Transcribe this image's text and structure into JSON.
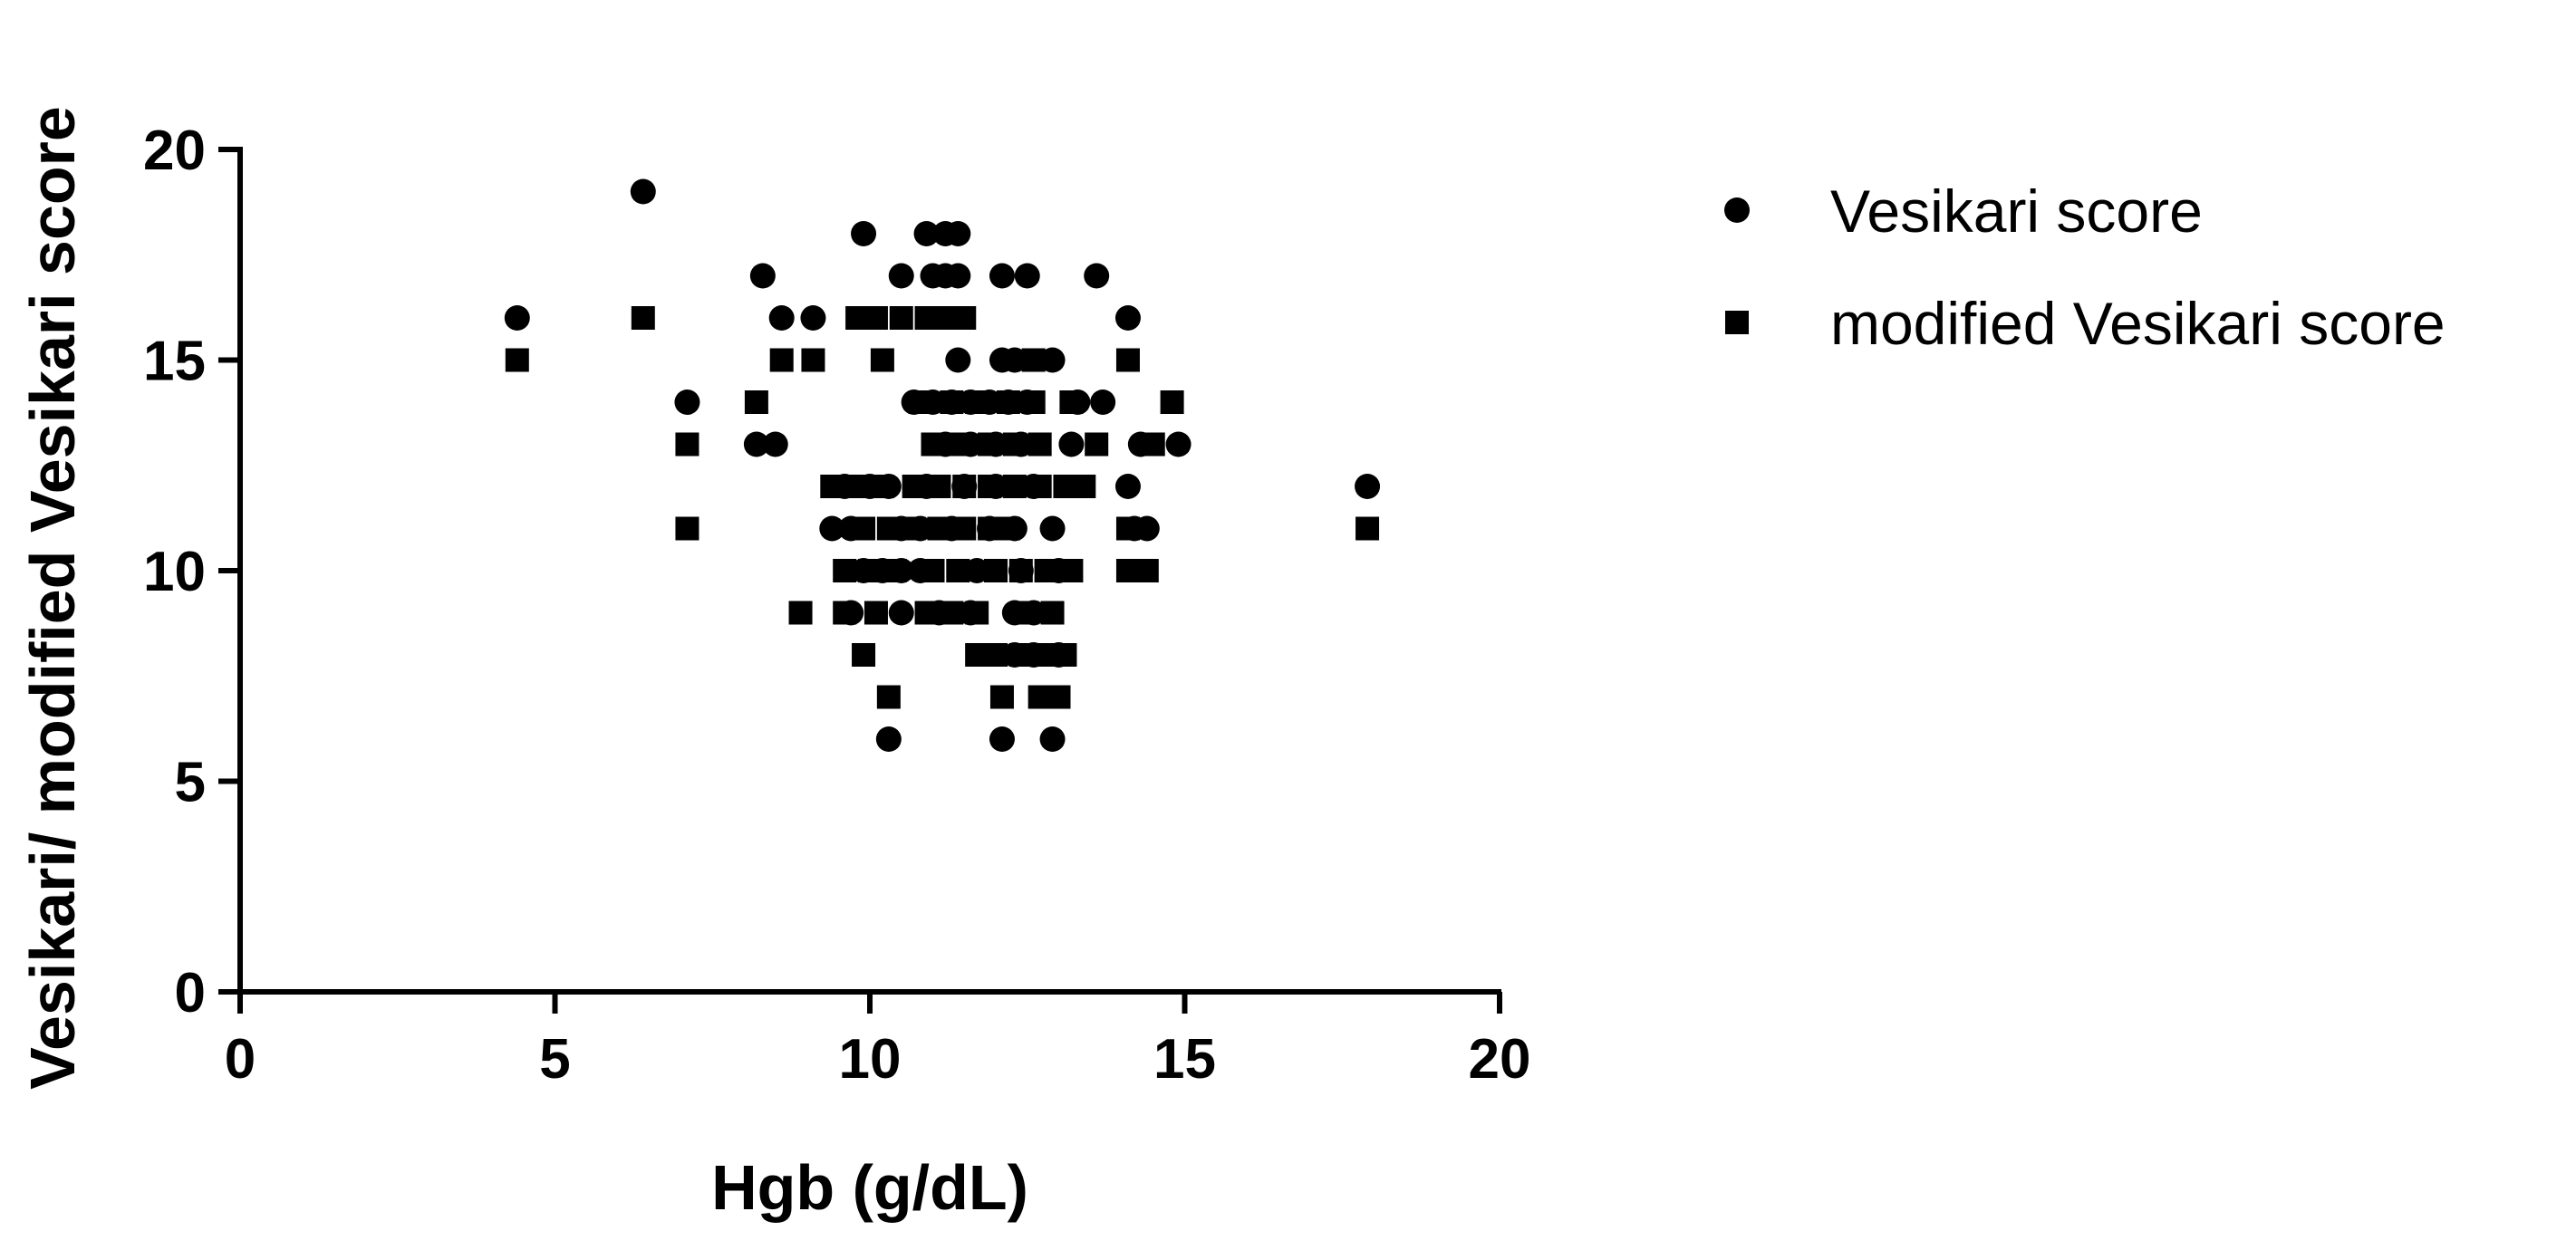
{
  "chart_data": {
    "type": "scatter",
    "title": "",
    "xlabel": "Hgb (g/dL)",
    "ylabel": "Vesikari/ modified Vesikari score",
    "xlim": [
      0,
      20
    ],
    "ylim": [
      0,
      20
    ],
    "xticks": [
      "0",
      "5",
      "10",
      "15",
      "20"
    ],
    "yticks": [
      "0",
      "5",
      "10",
      "15",
      "20"
    ],
    "grid": false,
    "legend_position": "right",
    "marker_color": "#000000",
    "series": [
      {
        "name": "Vesikari score",
        "marker": "circle",
        "points": [
          [
            4.4,
            16
          ],
          [
            6.4,
            19
          ],
          [
            7.1,
            14
          ],
          [
            8.3,
            17
          ],
          [
            8.6,
            16
          ],
          [
            9.1,
            16
          ],
          [
            8.2,
            13
          ],
          [
            8.5,
            13
          ],
          [
            9.9,
            18
          ],
          [
            10.5,
            17
          ],
          [
            10.9,
            18
          ],
          [
            11.2,
            18
          ],
          [
            11.4,
            18
          ],
          [
            11.0,
            17
          ],
          [
            11.2,
            17
          ],
          [
            11.4,
            17
          ],
          [
            12.1,
            17
          ],
          [
            12.5,
            17
          ],
          [
            13.6,
            17
          ],
          [
            14.1,
            16
          ],
          [
            11.4,
            15
          ],
          [
            12.1,
            15
          ],
          [
            12.3,
            15
          ],
          [
            12.9,
            15
          ],
          [
            10.7,
            14
          ],
          [
            11.0,
            14
          ],
          [
            11.3,
            14
          ],
          [
            11.6,
            14
          ],
          [
            11.9,
            14
          ],
          [
            12.2,
            14
          ],
          [
            12.5,
            14
          ],
          [
            13.3,
            14
          ],
          [
            13.7,
            14
          ],
          [
            11.2,
            13
          ],
          [
            11.6,
            13
          ],
          [
            12.0,
            13
          ],
          [
            12.4,
            13
          ],
          [
            13.2,
            13
          ],
          [
            14.3,
            13
          ],
          [
            14.9,
            13
          ],
          [
            9.6,
            12
          ],
          [
            10.0,
            12
          ],
          [
            10.3,
            12
          ],
          [
            10.9,
            12
          ],
          [
            11.5,
            12
          ],
          [
            12.0,
            12
          ],
          [
            12.6,
            12
          ],
          [
            14.1,
            12
          ],
          [
            17.9,
            12
          ],
          [
            9.4,
            11
          ],
          [
            9.7,
            11
          ],
          [
            10.5,
            11
          ],
          [
            10.8,
            11
          ],
          [
            11.3,
            11
          ],
          [
            11.9,
            11
          ],
          [
            12.3,
            11
          ],
          [
            12.9,
            11
          ],
          [
            14.2,
            11
          ],
          [
            14.4,
            11
          ],
          [
            9.9,
            10
          ],
          [
            10.2,
            10
          ],
          [
            10.5,
            10
          ],
          [
            10.8,
            10
          ],
          [
            11.7,
            10
          ],
          [
            12.4,
            10
          ],
          [
            13.0,
            10
          ],
          [
            9.7,
            9
          ],
          [
            10.5,
            9
          ],
          [
            11.1,
            9
          ],
          [
            11.6,
            9
          ],
          [
            12.3,
            9
          ],
          [
            12.6,
            9
          ],
          [
            12.3,
            8
          ],
          [
            12.6,
            8
          ],
          [
            13.0,
            8
          ],
          [
            10.3,
            6
          ],
          [
            12.1,
            6
          ],
          [
            12.9,
            6
          ]
        ]
      },
      {
        "name": "modified Vesikari score",
        "marker": "square",
        "points": [
          [
            4.4,
            15
          ],
          [
            6.4,
            16
          ],
          [
            7.1,
            13
          ],
          [
            7.1,
            11
          ],
          [
            8.2,
            14
          ],
          [
            8.6,
            15
          ],
          [
            9.1,
            15
          ],
          [
            9.8,
            16
          ],
          [
            10.1,
            16
          ],
          [
            10.5,
            16
          ],
          [
            10.2,
            15
          ],
          [
            10.9,
            16
          ],
          [
            11.2,
            16
          ],
          [
            11.5,
            16
          ],
          [
            12.6,
            15
          ],
          [
            14.1,
            15
          ],
          [
            13.2,
            14
          ],
          [
            14.8,
            14
          ],
          [
            13.6,
            13
          ],
          [
            14.5,
            13
          ],
          [
            10.8,
            14
          ],
          [
            11.3,
            14
          ],
          [
            11.7,
            14
          ],
          [
            12.2,
            14
          ],
          [
            12.6,
            14
          ],
          [
            11.0,
            13
          ],
          [
            11.4,
            13
          ],
          [
            11.9,
            13
          ],
          [
            12.3,
            13
          ],
          [
            12.7,
            13
          ],
          [
            9.4,
            12
          ],
          [
            9.8,
            12
          ],
          [
            10.2,
            12
          ],
          [
            10.7,
            12
          ],
          [
            11.1,
            12
          ],
          [
            11.5,
            12
          ],
          [
            11.9,
            12
          ],
          [
            12.3,
            12
          ],
          [
            12.7,
            12
          ],
          [
            13.1,
            12
          ],
          [
            13.4,
            12
          ],
          [
            9.9,
            11
          ],
          [
            10.3,
            11
          ],
          [
            10.7,
            11
          ],
          [
            11.1,
            11
          ],
          [
            11.5,
            11
          ],
          [
            11.9,
            11
          ],
          [
            12.2,
            11
          ],
          [
            14.1,
            11
          ],
          [
            17.9,
            11
          ],
          [
            9.6,
            10
          ],
          [
            10.0,
            10
          ],
          [
            10.4,
            10
          ],
          [
            11.0,
            10
          ],
          [
            11.4,
            10
          ],
          [
            12.0,
            10
          ],
          [
            12.4,
            10
          ],
          [
            12.8,
            10
          ],
          [
            13.2,
            10
          ],
          [
            14.1,
            10
          ],
          [
            14.4,
            10
          ],
          [
            8.9,
            9
          ],
          [
            9.6,
            9
          ],
          [
            10.1,
            9
          ],
          [
            10.9,
            9
          ],
          [
            11.3,
            9
          ],
          [
            11.7,
            9
          ],
          [
            12.5,
            9
          ],
          [
            12.9,
            9
          ],
          [
            9.9,
            8
          ],
          [
            11.7,
            8
          ],
          [
            12.0,
            8
          ],
          [
            12.4,
            8
          ],
          [
            12.8,
            8
          ],
          [
            13.1,
            8
          ],
          [
            10.3,
            7
          ],
          [
            12.1,
            7
          ],
          [
            12.7,
            7
          ],
          [
            13.0,
            7
          ]
        ]
      }
    ]
  }
}
